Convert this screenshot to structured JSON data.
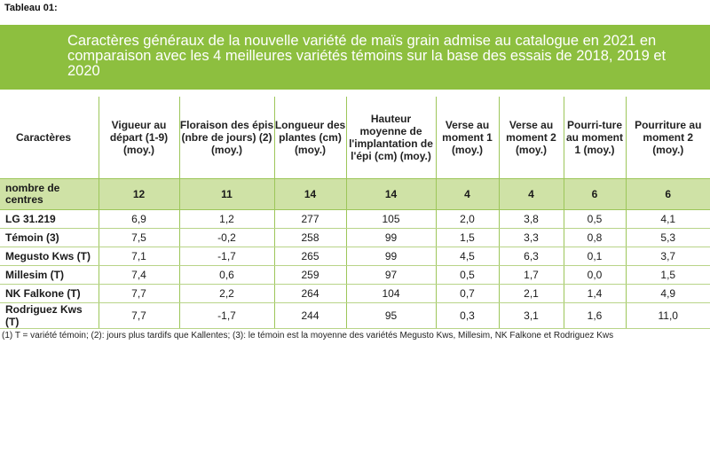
{
  "tag": "Tableau 01:",
  "title": "Caractères généraux de la nouvelle variété de maïs grain admise au catalogue en 2021 en comparaison avec les 4 meilleures variétés témoins sur la base des essais de 2018, 2019 et 2020",
  "headers": [
    "Caractères",
    "Vigueur au départ (1-9) (moy.)",
    "Floraison des épis (nbre de jours) (2) (moy.)",
    "Longueur des plantes (cm) (moy.)",
    "Hauteur moyenne de l'implantation de l'épi (cm) (moy.)",
    "Verse au moment 1 (moy.)",
    "Verse au moment 2 (moy.)",
    "Pourri-ture au moment 1 (moy.)",
    "Pourriture au moment 2 (moy.)"
  ],
  "count_row": [
    "nombre de centres",
    "12",
    "11",
    "14",
    "14",
    "4",
    "4",
    "6",
    "6"
  ],
  "rows": [
    [
      "LG 31.219",
      "6,9",
      "1,2",
      "277",
      "105",
      "2,0",
      "3,8",
      "0,5",
      "4,1"
    ],
    [
      "Témoin (3)",
      "7,5",
      "-0,2",
      "258",
      "99",
      "1,5",
      "3,3",
      "0,8",
      "5,3"
    ],
    [
      "Megusto Kws (T)",
      "7,1",
      "-1,7",
      "265",
      "99",
      "4,5",
      "6,3",
      "0,1",
      "3,7"
    ],
    [
      "Millesim (T)",
      "7,4",
      "0,6",
      "259",
      "97",
      "0,5",
      "1,7",
      "0,0",
      "1,5"
    ],
    [
      "NK Falkone (T)",
      "7,7",
      "2,2",
      "264",
      "104",
      "0,7",
      "2,1",
      "1,4",
      "4,9"
    ],
    [
      "Rodriguez Kws (T)",
      "7,7",
      "-1,7",
      "244",
      "95",
      "0,3",
      "3,1",
      "1,6",
      "11,0"
    ]
  ],
  "footnote": "(1) T = variété témoin; (2): jours plus tardifs que Kallentes; (3): le témoin est la moyenne des variétés Megusto Kws, Millesim, NK Falkone et Rodriguez Kws",
  "colors": {
    "banner": "#8dbf3f",
    "count_row": "#cfe2a6",
    "grid": "#9dc65a"
  }
}
